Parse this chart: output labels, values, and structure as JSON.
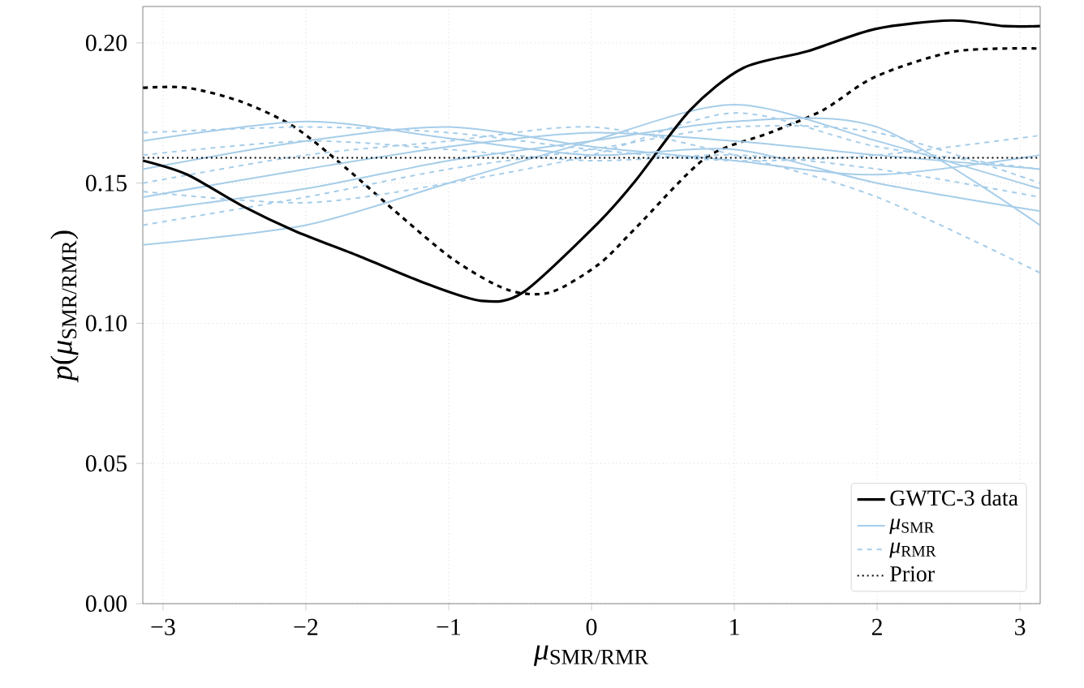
{
  "chart_data": {
    "type": "line",
    "xlabel": "*μ*$_{SMR/RMR}$",
    "ylabel": "*p*(*μ*$_{SMR/RMR}$)",
    "xlim": [
      -3.1416,
      3.1416
    ],
    "ylim": [
      0,
      0.213
    ],
    "xticks": [
      {
        "value": -3,
        "label": "−3"
      },
      {
        "value": -2,
        "label": "−2"
      },
      {
        "value": -1,
        "label": "−1"
      },
      {
        "value": 0,
        "label": "0"
      },
      {
        "value": 1,
        "label": "1"
      },
      {
        "value": 2,
        "label": "2"
      },
      {
        "value": 3,
        "label": "3"
      }
    ],
    "yticks": [
      {
        "value": 0,
        "label": "0.00"
      },
      {
        "value": 0.05,
        "label": "0.05"
      },
      {
        "value": 0.1,
        "label": "0.10"
      },
      {
        "value": 0.15,
        "label": "0.15"
      },
      {
        "value": 0.2,
        "label": "0.20"
      }
    ],
    "grid": true,
    "legend": "bottom right",
    "series": [
      {
        "name": "GWTC-3 data",
        "color": "#000000",
        "line_style": "solid",
        "x": [
          -3.14,
          -2.83,
          -2.45,
          -2.08,
          -1.63,
          -1.15,
          -0.77,
          -0.48,
          0.05,
          0.31,
          0.69,
          1.06,
          1.51,
          1.99,
          2.52,
          2.89,
          3.14
        ],
        "values": [
          0.158,
          0.153,
          0.142,
          0.133,
          0.124,
          0.114,
          0.108,
          0.111,
          0.136,
          0.151,
          0.176,
          0.191,
          0.197,
          0.205,
          0.208,
          0.206,
          0.206
        ]
      },
      {
        "name": "*μ*$_{SMR}$",
        "color": "#a6cde9",
        "line_style": "solid",
        "x": [
          -3.14,
          -2,
          -1,
          0,
          1,
          2,
          3.14
        ],
        "values": [
          0.165,
          0.172,
          0.166,
          0.16,
          0.162,
          0.15,
          0.14
        ]
      },
      {
        "name": "*μ*$_{RMR}$",
        "color": "#a6cde9",
        "line_style": "dashed",
        "x": [
          -3.14,
          -2,
          -1,
          0,
          1,
          2,
          3.14
        ],
        "values": [
          0.168,
          0.17,
          0.168,
          0.162,
          0.158,
          0.16,
          0.167
        ]
      },
      {
        "name": "Prior",
        "color": "#000000",
        "line_style": "dotted",
        "x": [
          -3.14,
          3.14
        ],
        "values": [
          0.159,
          0.159
        ]
      },
      {
        "color": "#000000",
        "line_style": "dashed",
        "x": [
          -3.14,
          -2.83,
          -2.45,
          -2.08,
          -1.71,
          -1.33,
          -0.96,
          -0.59,
          -0.29,
          0.05,
          0.31,
          0.8,
          1.25,
          1.62,
          1.99,
          2.55,
          3.14
        ],
        "values": [
          0.184,
          0.184,
          0.179,
          0.17,
          0.155,
          0.138,
          0.1225,
          0.112,
          0.111,
          0.121,
          0.134,
          0.159,
          0.168,
          0.176,
          0.188,
          0.197,
          0.198
        ]
      },
      {
        "color": "#a6cde9",
        "line_style": "solid",
        "x": [
          -3.14,
          -2,
          -1,
          0,
          1,
          2,
          3.14
        ],
        "values": [
          0.145,
          0.155,
          0.163,
          0.168,
          0.165,
          0.16,
          0.155
        ]
      },
      {
        "color": "#a6cde9",
        "line_style": "solid",
        "x": [
          -3.14,
          -2,
          -1,
          0,
          1,
          2,
          3.14
        ],
        "values": [
          0.128,
          0.135,
          0.15,
          0.165,
          0.178,
          0.165,
          0.148
        ]
      },
      {
        "color": "#a6cde9",
        "line_style": "solid",
        "x": [
          -3.14,
          -2,
          -1,
          0,
          1,
          2,
          3.14
        ],
        "values": [
          0.155,
          0.165,
          0.17,
          0.163,
          0.158,
          0.153,
          0.16
        ]
      },
      {
        "color": "#a6cde9",
        "line_style": "solid",
        "x": [
          -3.14,
          -2,
          -1,
          0,
          1,
          2,
          3.14
        ],
        "values": [
          0.14,
          0.148,
          0.158,
          0.165,
          0.172,
          0.17,
          0.135
        ]
      },
      {
        "color": "#a6cde9",
        "line_style": "dashed",
        "x": [
          -3.14,
          -2,
          -1,
          0,
          1,
          2,
          3.14
        ],
        "values": [
          0.15,
          0.16,
          0.165,
          0.17,
          0.16,
          0.145,
          0.118
        ]
      },
      {
        "color": "#a6cde9",
        "line_style": "dashed",
        "x": [
          -3.14,
          -2,
          -1,
          0,
          1,
          2,
          3.14
        ],
        "values": [
          0.135,
          0.145,
          0.155,
          0.162,
          0.17,
          0.168,
          0.15
        ]
      },
      {
        "color": "#a6cde9",
        "line_style": "dashed",
        "x": [
          -3.14,
          -2,
          -1,
          0,
          1,
          2,
          3.14
        ],
        "values": [
          0.16,
          0.165,
          0.162,
          0.158,
          0.16,
          0.155,
          0.145
        ]
      },
      {
        "color": "#a6cde9",
        "line_style": "dashed",
        "x": [
          -3.14,
          -2,
          -1,
          0,
          1,
          2,
          3.14
        ],
        "values": [
          0.147,
          0.143,
          0.15,
          0.16,
          0.175,
          0.163,
          0.155
        ]
      }
    ]
  }
}
